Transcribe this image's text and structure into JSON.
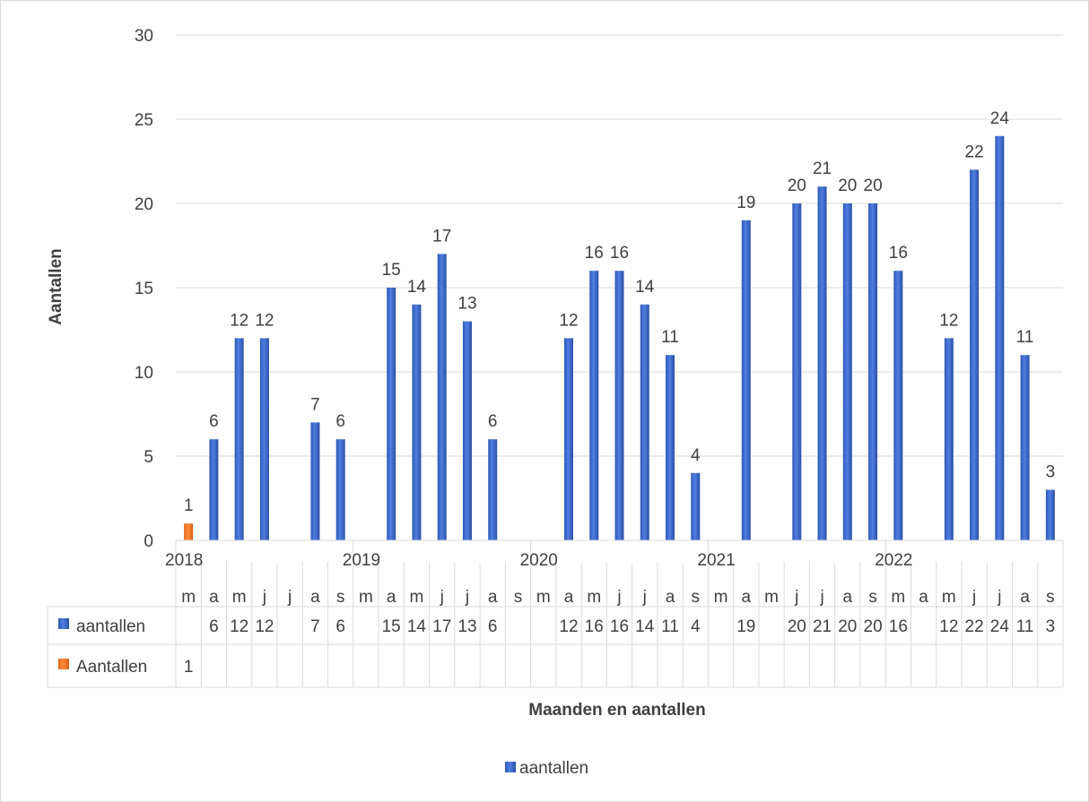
{
  "chart_data": {
    "type": "bar",
    "title": "",
    "xlabel": "Maanden en aantallen",
    "ylabel": "Aantallen",
    "ylim": [
      0,
      30
    ],
    "yticks": [
      0,
      5,
      10,
      15,
      20,
      25,
      30
    ],
    "grid": true,
    "legend_position": "bottom",
    "years": [
      {
        "label": "2018",
        "index": 0
      },
      {
        "label": "2019",
        "index": 7
      },
      {
        "label": "2020",
        "index": 14
      },
      {
        "label": "2021",
        "index": 21
      },
      {
        "label": "2022",
        "index": 28
      }
    ],
    "categories": [
      "m",
      "a",
      "m",
      "j",
      "j",
      "a",
      "s",
      "m",
      "a",
      "m",
      "j",
      "j",
      "a",
      "s",
      "m",
      "a",
      "m",
      "j",
      "j",
      "a",
      "s",
      "m",
      "a",
      "m",
      "j",
      "j",
      "a",
      "s",
      "m",
      "a",
      "m",
      "j",
      "j",
      "a",
      "s"
    ],
    "series": [
      {
        "name": "aantallen",
        "color": "#4472c4",
        "values": [
          null,
          6,
          12,
          12,
          null,
          7,
          6,
          null,
          15,
          14,
          17,
          13,
          6,
          null,
          null,
          12,
          16,
          16,
          14,
          11,
          4,
          null,
          19,
          null,
          20,
          21,
          20,
          20,
          16,
          null,
          12,
          22,
          24,
          11,
          3
        ]
      },
      {
        "name": "Aantallen",
        "color": "#ed7d31",
        "values": [
          1,
          null,
          null,
          null,
          null,
          null,
          null,
          null,
          null,
          null,
          null,
          null,
          null,
          null,
          null,
          null,
          null,
          null,
          null,
          null,
          null,
          null,
          null,
          null,
          null,
          null,
          null,
          null,
          null,
          null,
          null,
          null,
          null,
          null,
          null
        ]
      }
    ],
    "legend": [
      {
        "name": "aantallen",
        "color": "#4472c4"
      }
    ]
  }
}
